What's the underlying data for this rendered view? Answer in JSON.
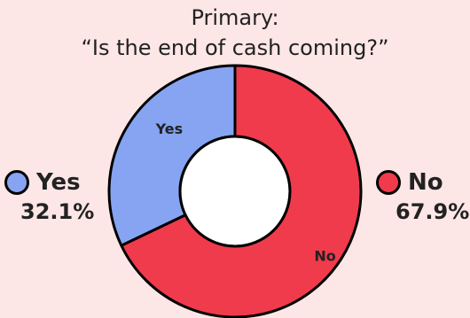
{
  "chart_data": {
    "type": "pie",
    "title_line1": "Primary:",
    "title_line2": "“Is the end of cash coming?”",
    "slices": [
      {
        "label": "Yes",
        "value": 32.1,
        "pct_label": "32.1%",
        "color": "#87a4f2"
      },
      {
        "label": "No",
        "value": 67.9,
        "pct_label": "67.9%",
        "color": "#f03b4c"
      }
    ]
  }
}
